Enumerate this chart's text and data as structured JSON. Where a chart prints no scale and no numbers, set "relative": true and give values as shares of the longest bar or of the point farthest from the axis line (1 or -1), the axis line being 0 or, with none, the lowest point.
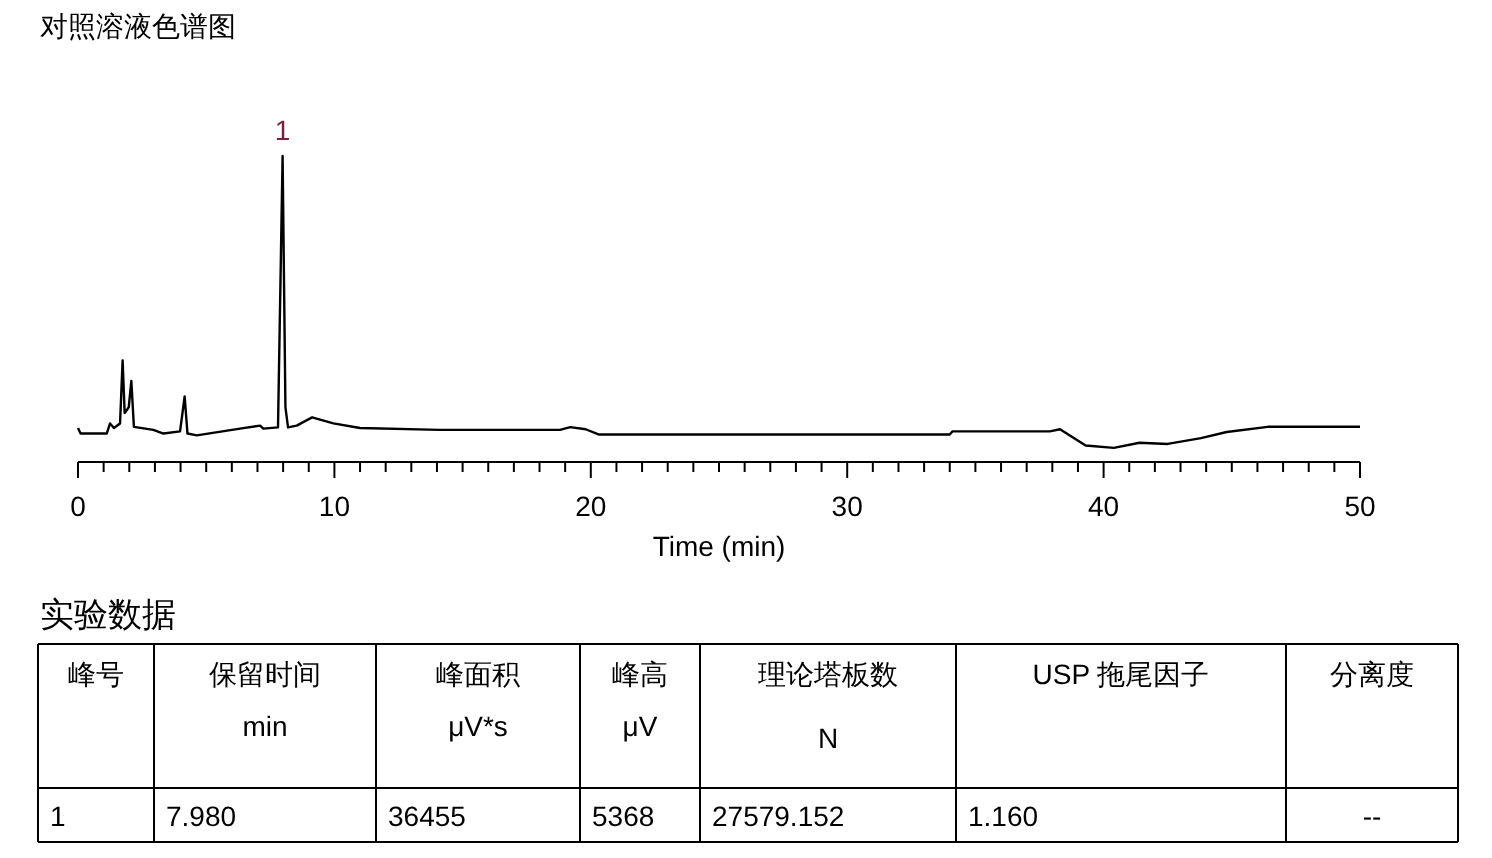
{
  "chart_data": [
    {
      "type": "line",
      "title": "对照溶液色谱图",
      "xlabel": "Time (min)",
      "relative": true,
      "tick_labels": "x",
      "grid": false,
      "marker": "none",
      "line_style": "solid",
      "xlim": [
        0,
        50
      ],
      "xticks": [
        0,
        {
          "value": 1,
          "label": null
        },
        {
          "value": 2,
          "label": null
        },
        {
          "value": 3,
          "label": null
        },
        {
          "value": 4,
          "label": null
        },
        {
          "value": 5,
          "label": null
        },
        {
          "value": 6,
          "label": null
        },
        {
          "value": 7,
          "label": null
        },
        {
          "value": 8,
          "label": null
        },
        {
          "value": 9,
          "label": null
        },
        10,
        {
          "value": 11,
          "label": null
        },
        {
          "value": 12,
          "label": null
        },
        {
          "value": 13,
          "label": null
        },
        {
          "value": 14,
          "label": null
        },
        {
          "value": 15,
          "label": null
        },
        {
          "value": 16,
          "label": null
        },
        {
          "value": 17,
          "label": null
        },
        {
          "value": 18,
          "label": null
        },
        {
          "value": 19,
          "label": null
        },
        20,
        {
          "value": 21,
          "label": null
        },
        {
          "value": 22,
          "label": null
        },
        {
          "value": 23,
          "label": null
        },
        {
          "value": 24,
          "label": null
        },
        {
          "value": 25,
          "label": null
        },
        {
          "value": 26,
          "label": null
        },
        {
          "value": 27,
          "label": null
        },
        {
          "value": 28,
          "label": null
        },
        {
          "value": 29,
          "label": null
        },
        30,
        {
          "value": 31,
          "label": null
        },
        {
          "value": 32,
          "label": null
        },
        {
          "value": 33,
          "label": null
        },
        {
          "value": 34,
          "label": null
        },
        {
          "value": 35,
          "label": null
        },
        {
          "value": 36,
          "label": null
        },
        {
          "value": 37,
          "label": null
        },
        {
          "value": 38,
          "label": null
        },
        {
          "value": 39,
          "label": null
        },
        40,
        {
          "value": 41,
          "label": null
        },
        {
          "value": 42,
          "label": null
        },
        {
          "value": 43,
          "label": null
        },
        {
          "value": 44,
          "label": null
        },
        {
          "value": 45,
          "label": null
        },
        {
          "value": 46,
          "label": null
        },
        {
          "value": 47,
          "label": null
        },
        {
          "value": 48,
          "label": null
        },
        {
          "value": 49,
          "label": null
        },
        50
      ],
      "annotations": [
        {
          "text": "1",
          "x": 7.98,
          "y": 1
        }
      ],
      "series": [
        {
          "color": "#000000",
          "x": [
            0,
            0.1,
            1.12,
            1.25,
            1.4,
            1.64,
            1.74,
            1.82,
            1.98,
            2.08,
            2.18,
            2.94,
            3.33,
            3.98,
            4.16,
            4.27,
            4.63,
            6.32,
            7.1,
            7.23,
            7.8,
            7.98,
            8.09,
            8.19,
            8.53,
            9.13,
            9.96,
            11.0,
            14.1,
            18.8,
            19.2,
            19.8,
            20.3,
            34.0,
            34.1,
            37.9,
            38.3,
            39.3,
            40.4,
            41.4,
            42.5,
            43.8,
            44.8,
            46.4,
            50
          ],
          "values": [
            0.111,
            0.093,
            0.093,
            0.126,
            0.111,
            0.126,
            0.332,
            0.16,
            0.179,
            0.265,
            0.115,
            0.105,
            0.093,
            0.1,
            0.214,
            0.093,
            0.087,
            0.109,
            0.119,
            0.109,
            0.113,
            1,
            0.179,
            0.113,
            0.119,
            0.146,
            0.126,
            0.111,
            0.105,
            0.105,
            0.114,
            0.107,
            0.09,
            0.09,
            0.1,
            0.1,
            0.107,
            0.054,
            0.046,
            0.063,
            0.059,
            0.078,
            0.098,
            0.115,
            0.115
          ]
        }
      ]
    },
    {
      "type": "other",
      "title": "实验数据",
      "annotations": [
        "峰号",
        "保留时间\nmin",
        "峰面积\nμV*s",
        "峰高\nμV",
        "理论塔板数\nN",
        "USP 拖尾因子",
        "分离度",
        "1",
        "7.980",
        "36455",
        "5368",
        "27579.152",
        "1.160",
        "--"
      ]
    }
  ]
}
